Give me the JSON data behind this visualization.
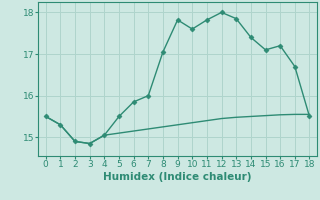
{
  "xlabel": "Humidex (Indice chaleur)",
  "x": [
    0,
    1,
    2,
    3,
    4,
    5,
    6,
    7,
    8,
    9,
    10,
    11,
    12,
    13,
    14,
    15,
    16,
    17,
    18
  ],
  "y_upper": [
    15.5,
    15.3,
    14.9,
    14.85,
    15.05,
    15.5,
    15.85,
    16.0,
    17.05,
    17.82,
    17.6,
    17.82,
    18.0,
    17.85,
    17.4,
    17.1,
    17.2,
    16.7,
    15.5
  ],
  "y_lower": [
    15.5,
    15.3,
    14.9,
    14.85,
    15.05,
    15.1,
    15.15,
    15.2,
    15.25,
    15.3,
    15.35,
    15.4,
    15.45,
    15.48,
    15.5,
    15.52,
    15.54,
    15.55,
    15.55
  ],
  "line_color": "#2e8b74",
  "bg_color": "#cde8e2",
  "grid_color": "#afd4cc",
  "ylim": [
    14.55,
    18.25
  ],
  "xlim": [
    -0.5,
    18.5
  ],
  "yticks": [
    15,
    16,
    17,
    18
  ],
  "xticks": [
    0,
    1,
    2,
    3,
    4,
    5,
    6,
    7,
    8,
    9,
    10,
    11,
    12,
    13,
    14,
    15,
    16,
    17,
    18
  ],
  "marker": "D",
  "markersize": 2.5,
  "linewidth": 1.0,
  "xlabel_fontsize": 7.5,
  "tick_fontsize": 6.5
}
